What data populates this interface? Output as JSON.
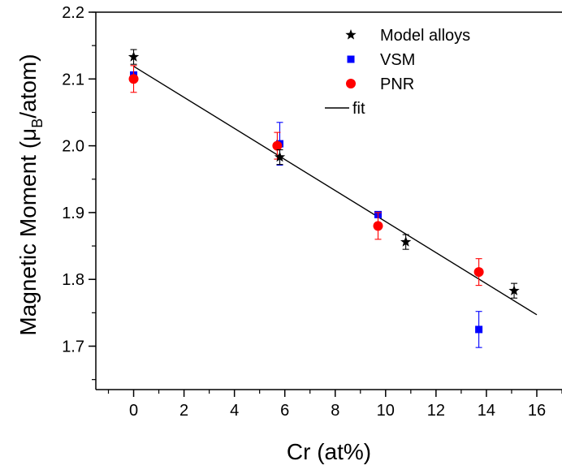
{
  "chart_data": {
    "type": "scatter",
    "title": "",
    "xlabel": "Cr (at%)",
    "ylabel_main": "Magnetic Moment (μ",
    "ylabel_sub": "B",
    "ylabel_tail": "/atom)",
    "xlim": [
      -1.5,
      17
    ],
    "ylim": [
      1.635,
      2.2
    ],
    "xticks": [
      0,
      2,
      4,
      6,
      8,
      10,
      12,
      14,
      16
    ],
    "yticks": [
      1.7,
      1.8,
      1.9,
      2.0,
      2.1,
      2.2
    ],
    "xtick_labels": [
      "0",
      "2",
      "4",
      "6",
      "8",
      "10",
      "12",
      "14",
      "16"
    ],
    "ytick_labels": [
      "1.7",
      "1.8",
      "1.9",
      "2.0",
      "2.1",
      "2.2"
    ],
    "legend_position": "top-right",
    "series": [
      {
        "name": "Model alloys",
        "marker": "star",
        "color": "#000000",
        "points": [
          {
            "x": 0.0,
            "y": 2.133,
            "err": 0.011
          },
          {
            "x": 5.8,
            "y": 1.983,
            "err": 0.011
          },
          {
            "x": 10.8,
            "y": 1.856,
            "err": 0.011
          },
          {
            "x": 15.1,
            "y": 1.783,
            "err": 0.011
          }
        ]
      },
      {
        "name": "VSM",
        "marker": "square",
        "color": "#0000ff",
        "points": [
          {
            "x": 0.0,
            "y": 2.106,
            "err": 0.0
          },
          {
            "x": 5.8,
            "y": 2.003,
            "err": 0.032
          },
          {
            "x": 9.7,
            "y": 1.897,
            "err": 0.0
          },
          {
            "x": 13.7,
            "y": 1.725,
            "err": 0.027
          }
        ]
      },
      {
        "name": "PNR",
        "marker": "circle",
        "color": "#ff0000",
        "points": [
          {
            "x": 0.0,
            "y": 2.1,
            "err": 0.02
          },
          {
            "x": 5.7,
            "y": 2.0,
            "err": 0.02
          },
          {
            "x": 9.7,
            "y": 1.88,
            "err": 0.02
          },
          {
            "x": 13.7,
            "y": 1.811,
            "err": 0.02
          }
        ]
      },
      {
        "name": "fit",
        "marker": "line",
        "color": "#000000",
        "line": {
          "x0": 0.0,
          "y0": 2.119,
          "x1": 16.0,
          "y1": 1.747
        }
      }
    ]
  }
}
